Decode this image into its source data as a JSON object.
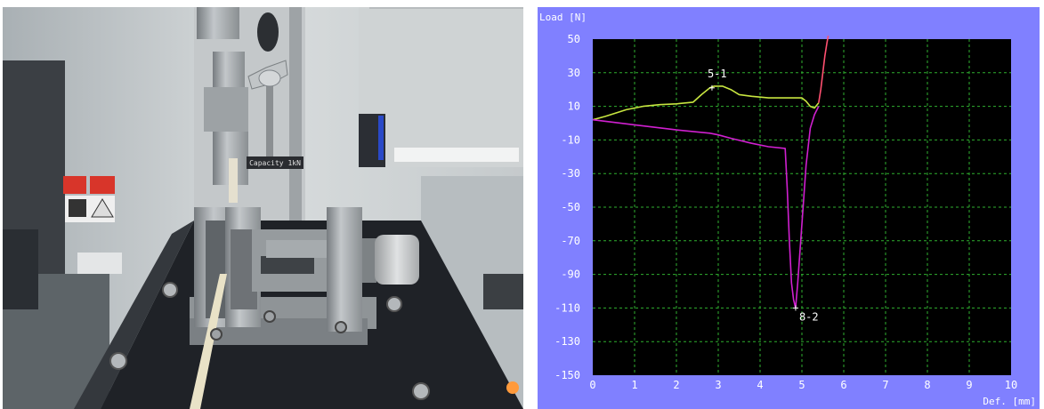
{
  "photo": {
    "machine_label": "Capacity 1kN"
  },
  "chart_data": {
    "type": "line",
    "ylabel": "Load [N]",
    "xlabel": "Def. [mm]",
    "xlim": [
      0,
      10
    ],
    "ylim": [
      -150,
      50
    ],
    "x_ticks": [
      "0",
      "1",
      "2",
      "3",
      "4",
      "5",
      "6",
      "7",
      "8",
      "9",
      "10"
    ],
    "y_ticks": [
      "50",
      "30",
      "10",
      "-10",
      "-30",
      "-50",
      "-70",
      "-90",
      "-110",
      "-130",
      "-150"
    ],
    "grid": true,
    "series": [
      {
        "color": "#c8e640",
        "x": [
          0,
          0.3,
          0.8,
          1.2,
          1.6,
          2.0,
          2.4,
          2.6,
          2.8,
          2.9,
          3.1,
          3.3,
          3.5,
          3.8,
          4.2,
          4.6,
          5.0,
          5.1,
          5.2,
          5.3,
          5.4
        ],
        "y": [
          2,
          4,
          8,
          10,
          11,
          11.5,
          12.5,
          17,
          21,
          22,
          22,
          20,
          17,
          16,
          15,
          15,
          15,
          13,
          10,
          9,
          12
        ]
      },
      {
        "color": "#d020d0",
        "x": [
          0,
          1.0,
          2.0,
          2.8,
          3.0,
          3.3,
          3.8,
          4.2,
          4.6,
          4.65,
          4.7,
          4.75,
          4.8,
          4.85,
          4.9,
          5.0,
          5.1,
          5.2,
          5.3,
          5.4
        ],
        "y": [
          2,
          -1,
          -4,
          -6,
          -7,
          -9,
          -12,
          -14,
          -15,
          -40,
          -70,
          -95,
          -105,
          -110,
          -95,
          -60,
          -25,
          -3,
          5,
          10
        ]
      },
      {
        "color": "#ff5070",
        "x": [
          5.4,
          5.45,
          5.5,
          5.55,
          5.6,
          5.63
        ],
        "y": [
          12,
          20,
          30,
          40,
          48,
          52
        ]
      }
    ],
    "annotations": [
      {
        "label": "5-1",
        "x": 2.85,
        "y": 21
      },
      {
        "label": "8-2",
        "x": 4.85,
        "y": -110
      }
    ]
  }
}
